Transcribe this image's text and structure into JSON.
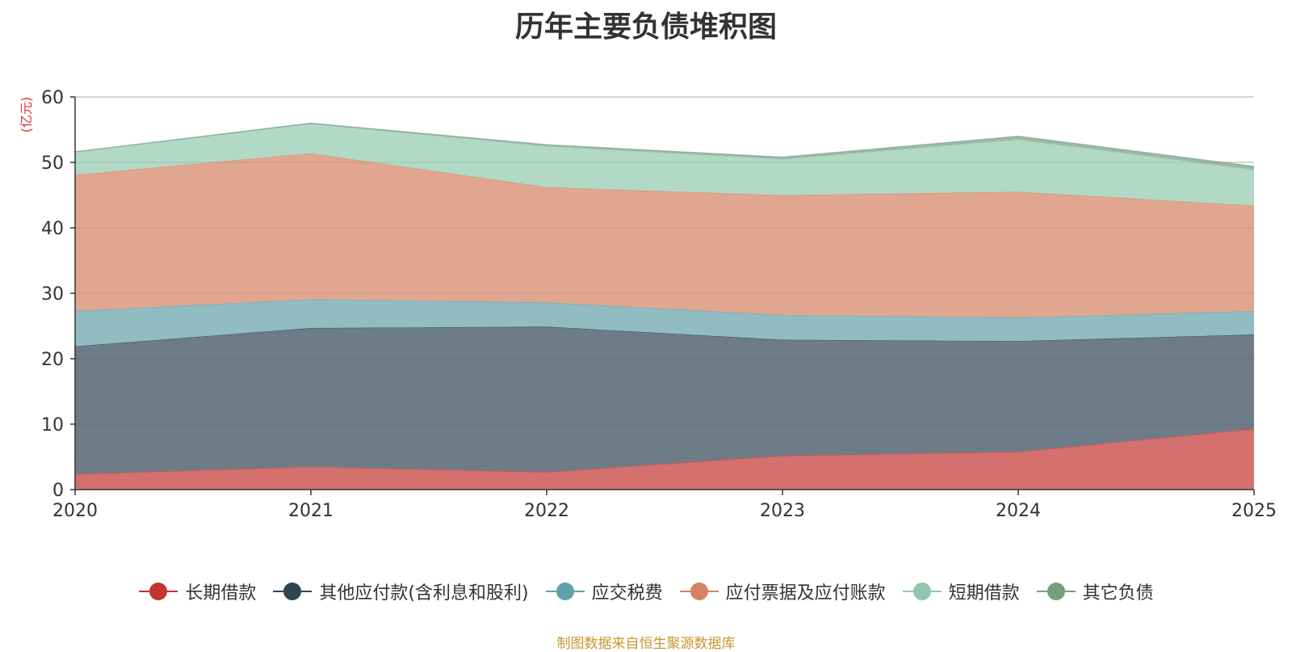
{
  "chart_data": {
    "type": "area",
    "stacked": true,
    "title": "历年主要负债堆积图",
    "ylabel": "(亿元)",
    "xlabel": "",
    "x": [
      "2020",
      "2021",
      "2022",
      "2023",
      "2024",
      "2025"
    ],
    "ylim": [
      0,
      60
    ],
    "yticks": [
      0,
      10,
      20,
      30,
      40,
      50,
      60
    ],
    "grid": true,
    "legend_position": "bottom",
    "series": [
      {
        "name": "长期借款",
        "values": [
          2.4,
          3.5,
          2.7,
          5.2,
          5.8,
          9.3
        ],
        "color": "#c23531",
        "fill": "#d4706d"
      },
      {
        "name": "其他应付款(含利息和股利)",
        "values": [
          19.5,
          21.2,
          22.2,
          17.7,
          16.9,
          14.4
        ],
        "color": "#2f4554",
        "fill": "#6e7c87"
      },
      {
        "name": "应交税费",
        "values": [
          5.4,
          4.4,
          3.7,
          3.8,
          3.6,
          3.6
        ],
        "color": "#61a0a8",
        "fill": "#90bcc2"
      },
      {
        "name": "应付票据及应付账款",
        "values": [
          20.8,
          22.3,
          17.6,
          18.3,
          19.2,
          16.1
        ],
        "color": "#d48265",
        "fill": "#e0a690"
      },
      {
        "name": "短期借款",
        "values": [
          3.5,
          4.5,
          6.3,
          5.5,
          8.0,
          5.5
        ],
        "color": "#91c7ae",
        "fill": "#b2d8c6"
      },
      {
        "name": "其它负债",
        "values": [
          0.0,
          0.1,
          0.2,
          0.3,
          0.5,
          0.5
        ],
        "color": "#749f83",
        "fill": "#9db8a6"
      }
    ]
  },
  "source_note": "制图数据来自恒生聚源数据库"
}
